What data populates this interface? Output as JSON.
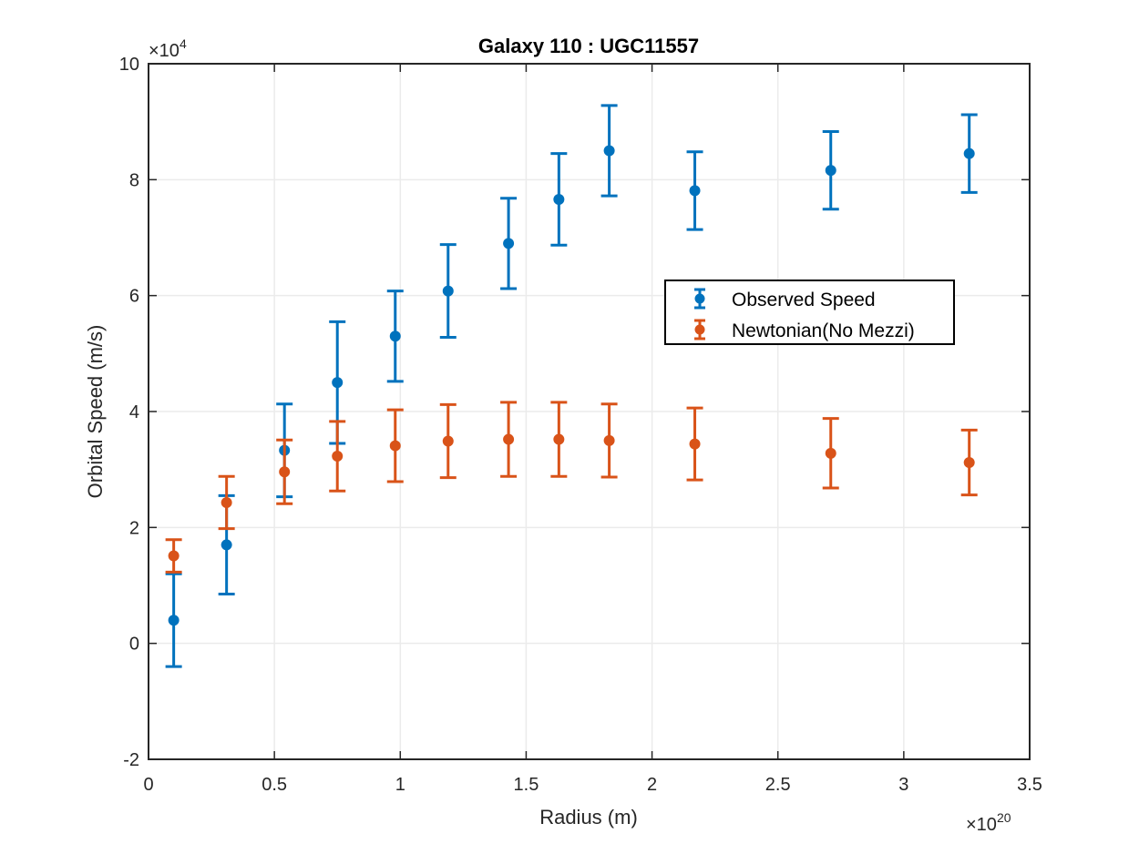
{
  "chart_data": {
    "type": "scatter",
    "title": "Galaxy 110 : UGC11557",
    "xlabel": "Radius (m)",
    "ylabel": "Orbital Speed (m/s)",
    "x_exponent_label": {
      "base": "×10",
      "power": "20"
    },
    "y_exponent_label": {
      "base": "×10",
      "power": "4"
    },
    "xlim": [
      0,
      3.5
    ],
    "ylim": [
      -2,
      10
    ],
    "x_ticks": [
      0,
      0.5,
      1,
      1.5,
      2,
      2.5,
      3,
      3.5
    ],
    "x_tick_labels": [
      "0",
      "0.5",
      "1",
      "1.5",
      "2",
      "2.5",
      "3",
      "3.5"
    ],
    "y_ticks": [
      -2,
      0,
      2,
      4,
      6,
      8,
      10
    ],
    "y_tick_labels": [
      "-2",
      "0",
      "2",
      "4",
      "6",
      "8",
      "10"
    ],
    "grid": true,
    "legend_position": "center-right",
    "colors": {
      "observed": "#0072BD",
      "newtonian": "#D95319",
      "grid": "#EBEBEB",
      "axes": "#262626"
    },
    "series": [
      {
        "name": "Observed Speed",
        "x": [
          0.1,
          0.31,
          0.54,
          0.75,
          0.98,
          1.19,
          1.43,
          1.63,
          1.83,
          2.17,
          2.71,
          3.26
        ],
        "y": [
          0.4,
          1.7,
          3.33,
          4.5,
          5.3,
          6.08,
          6.9,
          7.66,
          8.5,
          7.81,
          8.16,
          8.45
        ],
        "err_low": [
          0.8,
          0.85,
          0.8,
          1.05,
          0.78,
          0.8,
          0.78,
          0.79,
          0.78,
          0.67,
          0.67,
          0.67
        ],
        "err_high": [
          0.8,
          0.85,
          0.8,
          1.05,
          0.78,
          0.8,
          0.78,
          0.79,
          0.78,
          0.67,
          0.67,
          0.67
        ]
      },
      {
        "name": "Newtonian(No Mezzi)",
        "x": [
          0.1,
          0.31,
          0.54,
          0.75,
          0.98,
          1.19,
          1.43,
          1.63,
          1.83,
          2.17,
          2.71,
          3.26
        ],
        "y": [
          1.51,
          2.43,
          2.96,
          3.23,
          3.41,
          3.49,
          3.52,
          3.52,
          3.5,
          3.44,
          3.28,
          3.12
        ],
        "err_low": [
          0.28,
          0.45,
          0.55,
          0.6,
          0.62,
          0.63,
          0.64,
          0.64,
          0.63,
          0.62,
          0.6,
          0.56
        ],
        "err_high": [
          0.28,
          0.45,
          0.55,
          0.6,
          0.62,
          0.63,
          0.64,
          0.64,
          0.63,
          0.62,
          0.6,
          0.56
        ]
      }
    ]
  }
}
